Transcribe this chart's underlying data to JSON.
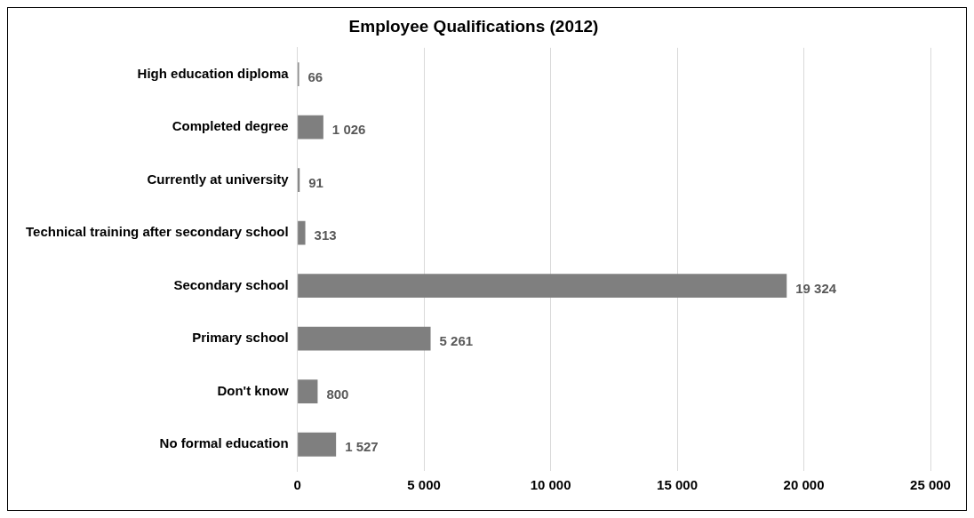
{
  "chart_data": {
    "type": "bar",
    "orientation": "horizontal",
    "title": "Employee Qualifications (2012)",
    "categories": [
      "High education diploma",
      "Completed degree",
      "Currently at university",
      "Technical training after secondary school",
      "Secondary school",
      "Primary school",
      "Don't know",
      "No formal education"
    ],
    "values": [
      66,
      1026,
      91,
      313,
      19324,
      5261,
      800,
      1527
    ],
    "value_labels": [
      "66",
      "1 026",
      "91",
      "313",
      "19 324",
      "5 261",
      "800",
      "1 527"
    ],
    "color": "#7f7f7f",
    "xlim": [
      0,
      25000
    ],
    "xticks": [
      {
        "value": 0,
        "label": "0"
      },
      {
        "value": 5000,
        "label": "5 000"
      },
      {
        "value": 10000,
        "label": "10 000"
      },
      {
        "value": 15000,
        "label": "15 000"
      },
      {
        "value": 20000,
        "label": "20 000"
      },
      {
        "value": 25000,
        "label": "25 000"
      }
    ],
    "grid": "x",
    "legend": false
  }
}
